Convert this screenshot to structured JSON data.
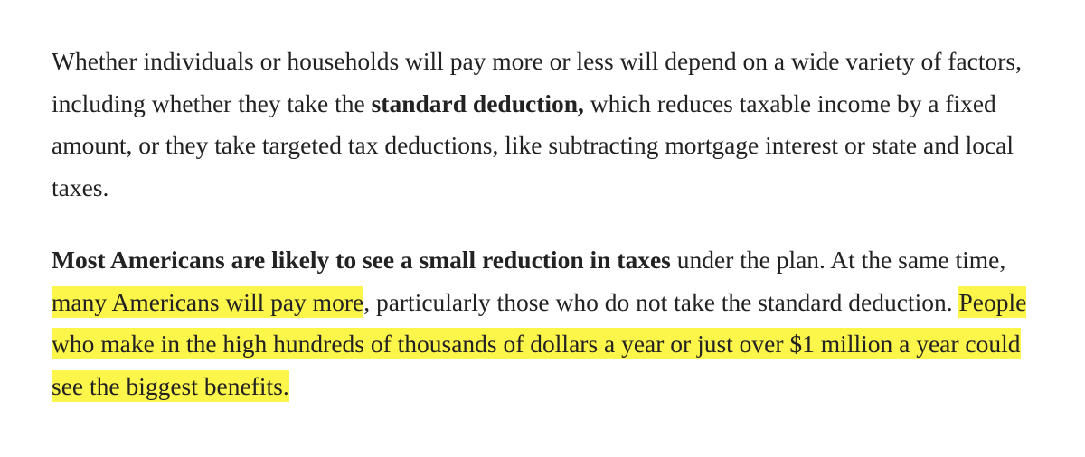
{
  "paragraphs": [
    {
      "segments": [
        {
          "text": "Whether individuals or households will pay more or less will depend on a wide variety of factors, including whether they take the ",
          "bold": false,
          "highlight": false
        },
        {
          "text": "standard deduction,",
          "bold": true,
          "highlight": false
        },
        {
          "text": " which reduces taxable income by a fixed amount, or they take targeted tax deductions, like subtracting mortgage interest or state and local taxes.",
          "bold": false,
          "highlight": false
        }
      ]
    },
    {
      "segments": [
        {
          "text": "Most Americans are likely to see a small reduction in taxes",
          "bold": true,
          "highlight": false
        },
        {
          "text": " under the plan. At the same time, ",
          "bold": false,
          "highlight": false
        },
        {
          "text": "many Americans will pay more",
          "bold": false,
          "highlight": true
        },
        {
          "text": ", particularly those who do not take the standard deduction. ",
          "bold": false,
          "highlight": false
        },
        {
          "text": "People who make in the high hundreds of thousands of dollars a year or just over $1 million a year could see the biggest benefits.",
          "bold": false,
          "highlight": true
        }
      ]
    }
  ]
}
